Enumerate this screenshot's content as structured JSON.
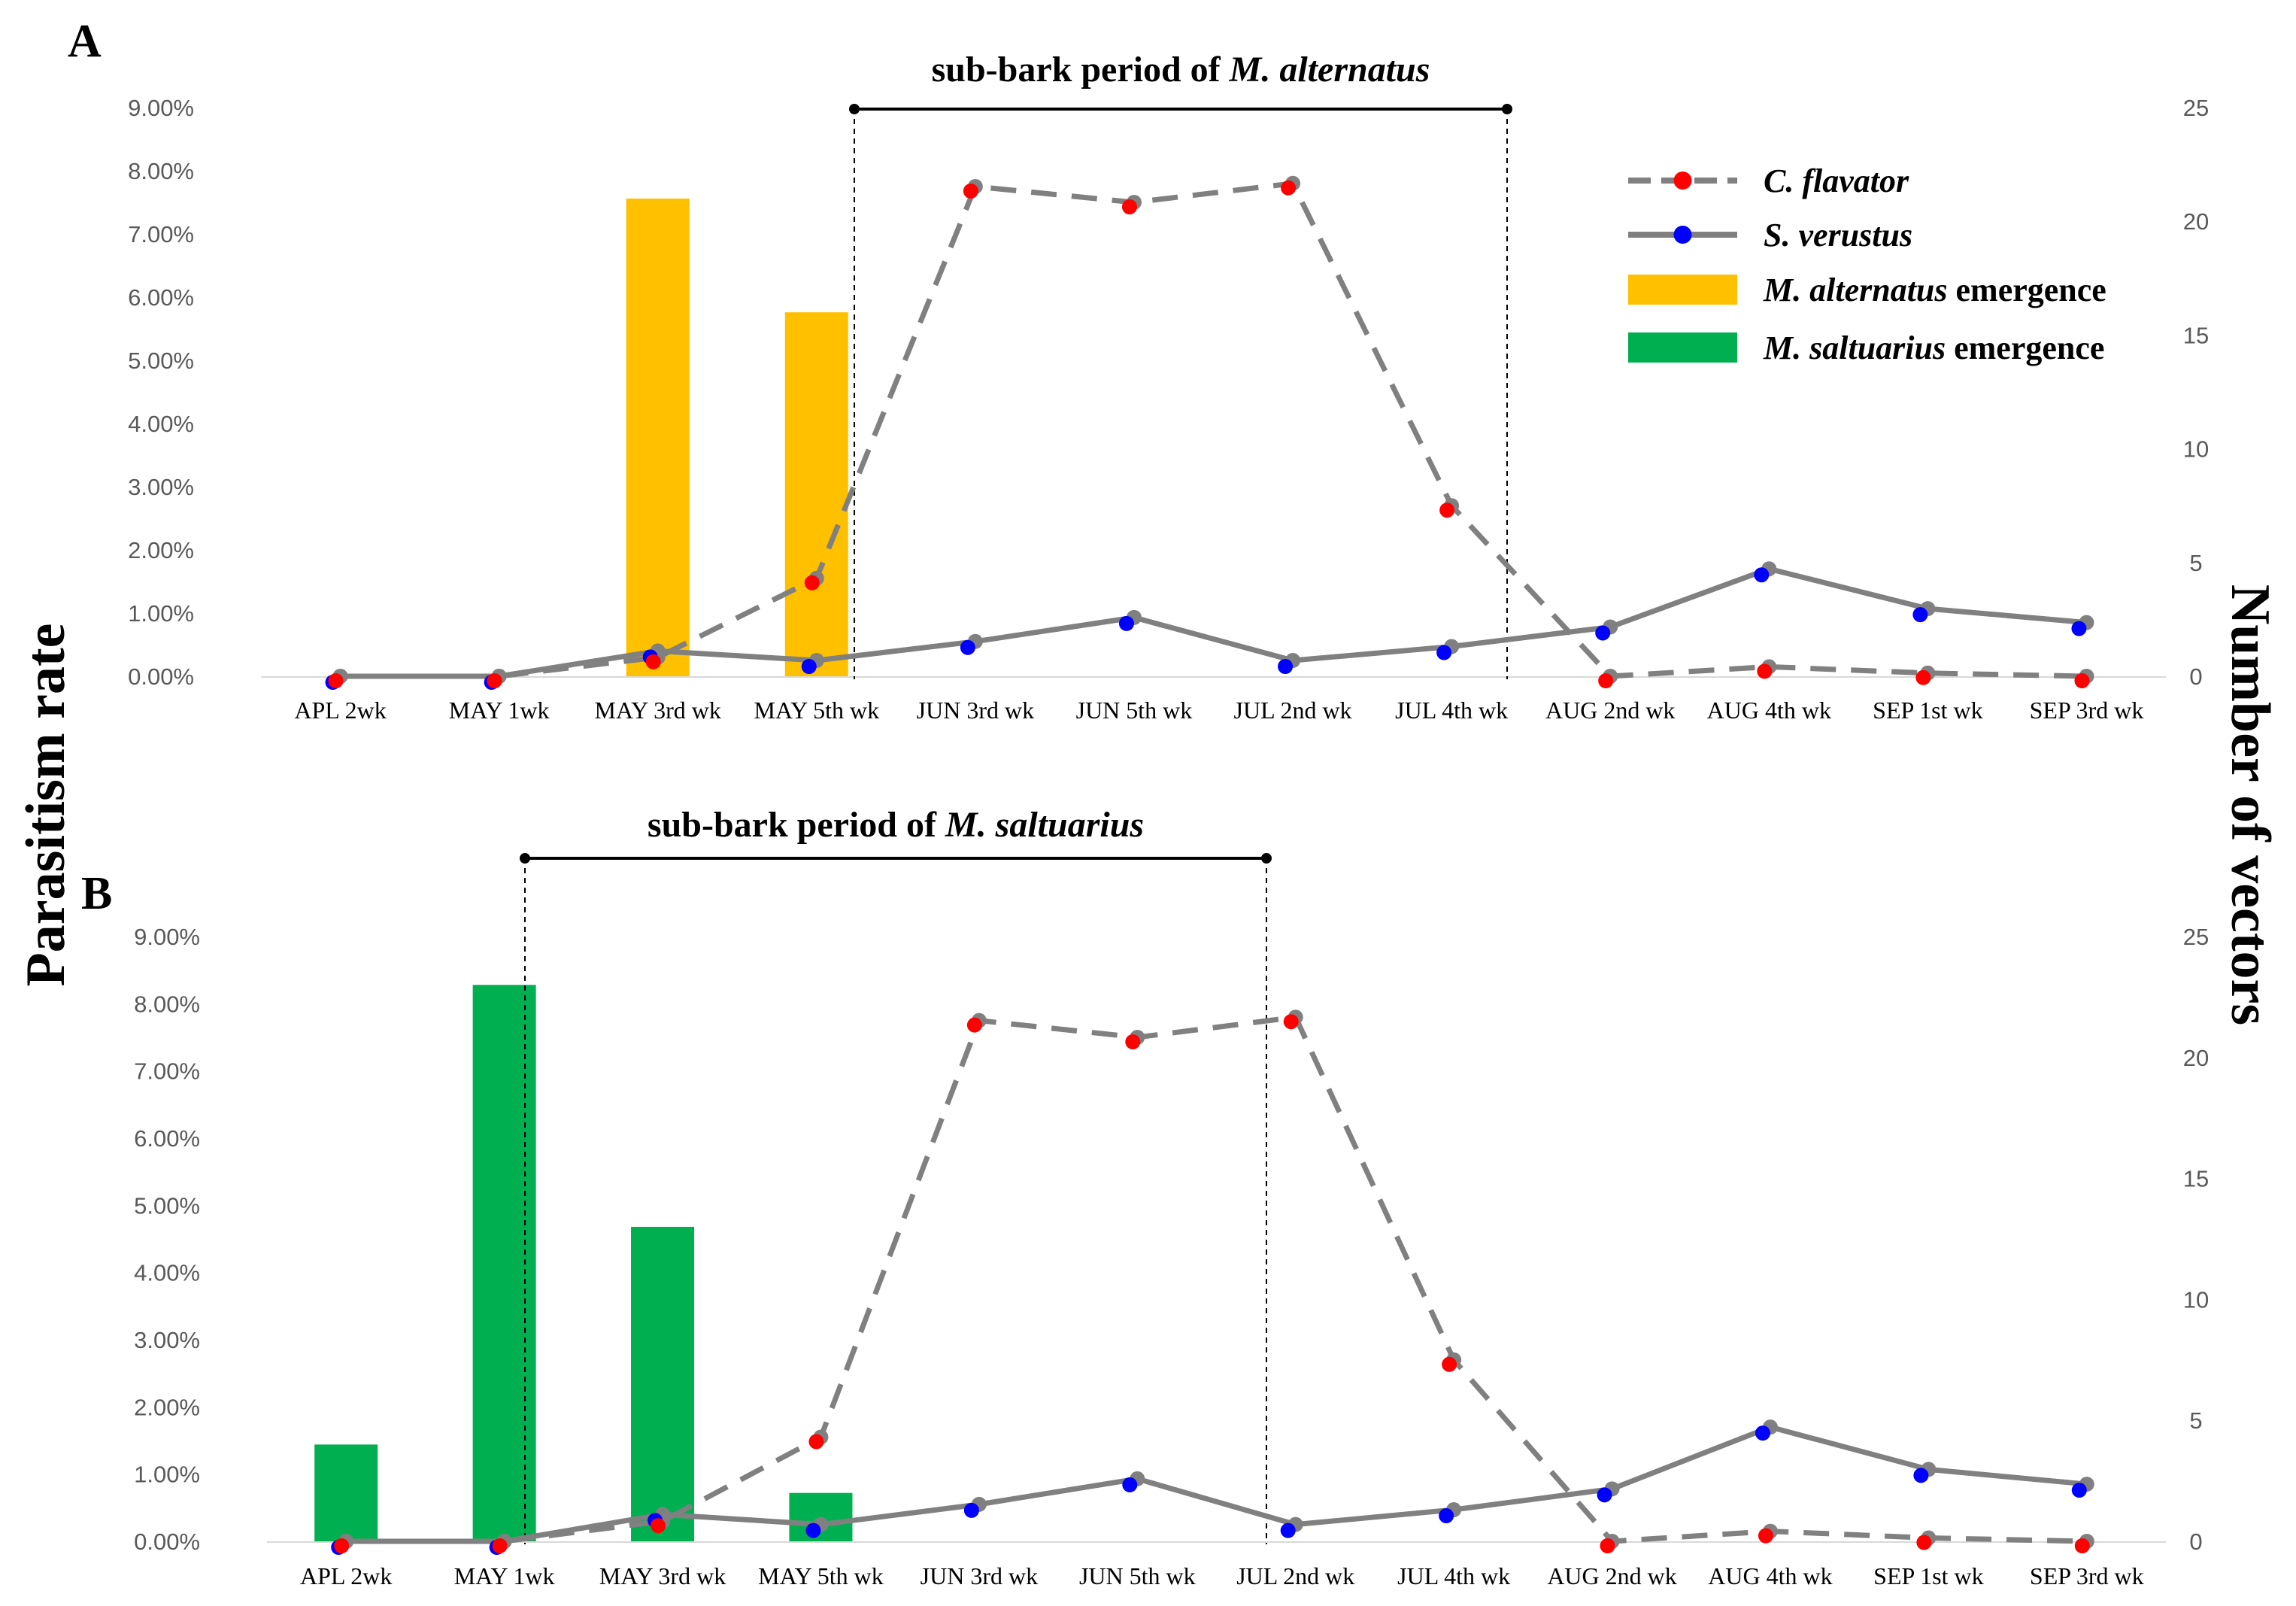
{
  "figure": {
    "ylabel_left": "Parasitism rate",
    "ylabel_right": "Number of vectors"
  },
  "colors": {
    "c_flavator_marker": "#ff0000",
    "s_verustus_marker": "#0000ff",
    "line": "#808080",
    "m_alternatus_bar": "#ffc000",
    "m_saltuarius_bar": "#00b050",
    "period_bracket": "#000000"
  },
  "legend": {
    "c_flavator": {
      "italic": "C. flavator",
      "suffix": ""
    },
    "s_verustus": {
      "italic": "S. verustus",
      "suffix": ""
    },
    "m_alternatus": {
      "italic": "M. alternatus",
      "suffix": " emergence"
    },
    "m_saltuarius": {
      "italic": "M. saltuarius",
      "suffix": " emergence"
    }
  },
  "chart_data": [
    {
      "panel": "A",
      "type": "bar+line",
      "period_label": {
        "prefix": "sub-bark period of ",
        "italic": "M. alternatus"
      },
      "period_range": [
        "MAY 5th wk",
        "AUG 2nd wk"
      ],
      "categories": [
        "APL 2wk",
        "MAY 1wk",
        "MAY 3rd wk",
        "MAY 5th wk",
        "JUN 3rd wk",
        "JUN 5th wk",
        "JUL 2nd wk",
        "JUL 4th wk",
        "AUG 2nd wk",
        "AUG 4th wk",
        "SEP 1st wk",
        "SEP 3rd wk"
      ],
      "yleft": {
        "min": 0,
        "max": 0.09,
        "step": 0.01,
        "ticks": [
          "0.00%",
          "1.00%",
          "2.00%",
          "3.00%",
          "4.00%",
          "5.00%",
          "6.00%",
          "7.00%",
          "8.00%",
          "9.00%"
        ]
      },
      "yright": {
        "min": 0,
        "max": 25,
        "step": 5,
        "ticks": [
          "0",
          "5",
          "10",
          "15",
          "20",
          "25"
        ]
      },
      "series": [
        {
          "name": "C. flavator",
          "kind": "dashed-line",
          "axis": "left",
          "values": [
            0.0,
            0.0,
            0.003,
            0.0155,
            0.0775,
            0.075,
            0.078,
            0.027,
            0.0,
            0.0015,
            0.0005,
            0.0
          ]
        },
        {
          "name": "S. verustus",
          "kind": "solid-line",
          "axis": "left",
          "values": [
            0.0,
            0.0,
            0.004,
            0.0025,
            0.0055,
            0.0093,
            0.0025,
            0.0047,
            0.0078,
            0.017,
            0.0107,
            0.0085
          ]
        },
        {
          "name": "M. alternatus emergence",
          "kind": "bar",
          "axis": "right",
          "values": [
            0,
            0,
            21,
            16,
            0,
            0,
            0,
            0,
            0,
            0,
            0,
            0
          ]
        }
      ]
    },
    {
      "panel": "B",
      "type": "bar+line",
      "period_label": {
        "prefix": "sub-bark period of ",
        "italic": "M. saltuarius"
      },
      "period_range": [
        "MAY 1wk",
        "JUL 2nd wk"
      ],
      "categories": [
        "APL 2wk",
        "MAY 1wk",
        "MAY 3rd wk",
        "MAY 5th wk",
        "JUN 3rd wk",
        "JUN 5th wk",
        "JUL 2nd wk",
        "JUL 4th wk",
        "AUG 2nd wk",
        "AUG 4th wk",
        "SEP 1st wk",
        "SEP 3rd wk"
      ],
      "yleft": {
        "min": 0,
        "max": 0.09,
        "step": 0.01,
        "ticks": [
          "0.00%",
          "1.00%",
          "2.00%",
          "3.00%",
          "4.00%",
          "5.00%",
          "6.00%",
          "7.00%",
          "8.00%",
          "9.00%"
        ]
      },
      "yright": {
        "min": 0,
        "max": 25,
        "step": 5,
        "ticks": [
          "0",
          "5",
          "10",
          "15",
          "20",
          "25"
        ]
      },
      "series": [
        {
          "name": "C. flavator",
          "kind": "dashed-line",
          "axis": "left",
          "values": [
            0.0,
            0.0,
            0.003,
            0.0155,
            0.0775,
            0.075,
            0.078,
            0.027,
            0.0,
            0.0015,
            0.0005,
            0.0
          ]
        },
        {
          "name": "S. verustus",
          "kind": "solid-line",
          "axis": "left",
          "values": [
            0.0,
            0.0,
            0.004,
            0.0025,
            0.0055,
            0.0093,
            0.0025,
            0.0047,
            0.0078,
            0.017,
            0.0107,
            0.0085
          ]
        },
        {
          "name": "M. saltuarius emergence",
          "kind": "bar",
          "axis": "right",
          "values": [
            4,
            23,
            13,
            2,
            0,
            0,
            0,
            0,
            0,
            0,
            0,
            0
          ]
        }
      ]
    }
  ]
}
